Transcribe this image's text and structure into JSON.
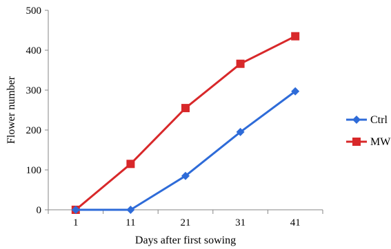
{
  "chart_data": {
    "type": "line",
    "title": "",
    "xlabel": "Days after first sowing",
    "ylabel": "Flower number",
    "categories": [
      "1",
      "11",
      "21",
      "31",
      "41"
    ],
    "ylim": [
      0,
      500
    ],
    "yticks": [
      "0",
      "100",
      "200",
      "300",
      "400",
      "500"
    ],
    "grid": false,
    "legend_position": "right",
    "series": [
      {
        "name": "Ctrl",
        "values": [
          0,
          0,
          85,
          195,
          297
        ],
        "color": "#2E6BD8",
        "marker": "diamond"
      },
      {
        "name": "MW",
        "values": [
          0,
          115,
          255,
          366,
          435
        ],
        "color": "#D8282A",
        "marker": "square"
      }
    ]
  }
}
